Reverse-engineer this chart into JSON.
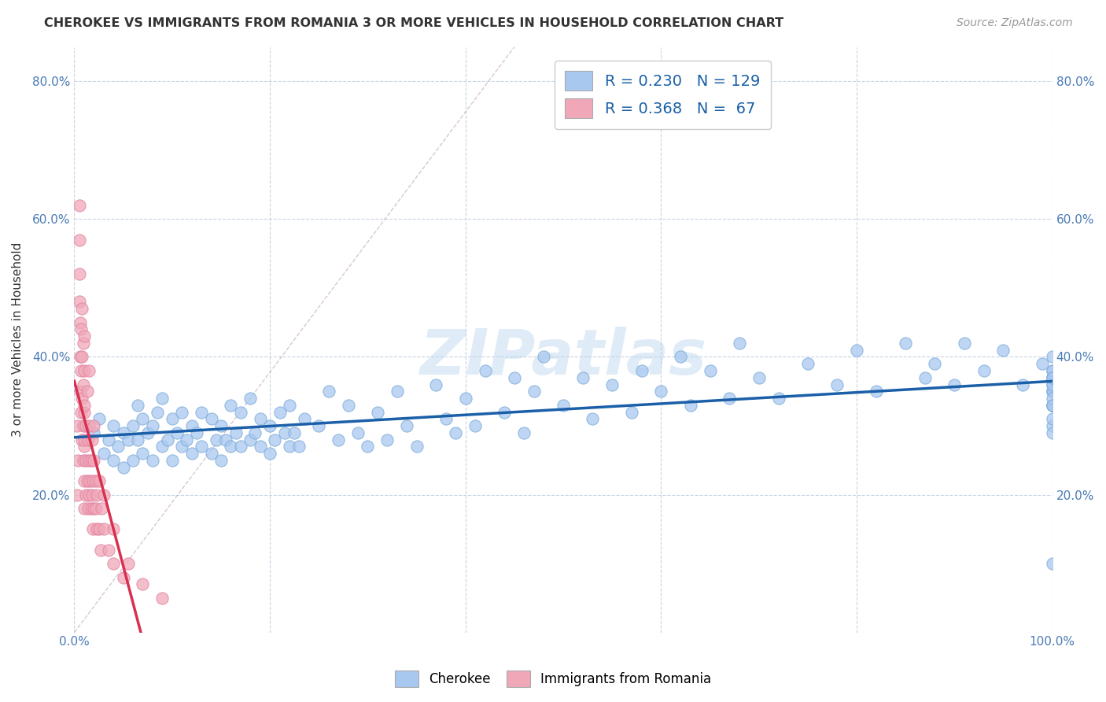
{
  "title": "CHEROKEE VS IMMIGRANTS FROM ROMANIA 3 OR MORE VEHICLES IN HOUSEHOLD CORRELATION CHART",
  "source": "Source: ZipAtlas.com",
  "ylabel": "3 or more Vehicles in Household",
  "xlim": [
    0,
    1.0
  ],
  "ylim": [
    0,
    0.85
  ],
  "xticks": [
    0,
    0.2,
    0.4,
    0.6,
    0.8,
    1.0
  ],
  "yticks": [
    0,
    0.2,
    0.4,
    0.6,
    0.8
  ],
  "xticklabels": [
    "0.0%",
    "",
    "",
    "",
    "",
    "100.0%"
  ],
  "yticklabels_left": [
    "",
    "20.0%",
    "40.0%",
    "60.0%",
    "80.0%"
  ],
  "yticklabels_right": [
    "",
    "20.0%",
    "40.0%",
    "60.0%",
    "80.0%"
  ],
  "cherokee_color": "#a8c8f0",
  "romania_color": "#f0a8b8",
  "cherokee_edge_color": "#7aaad8",
  "romania_edge_color": "#e080a0",
  "cherokee_line_color": "#1a5fa8",
  "romania_line_color": "#d83050",
  "diagonal_color": "#c8a8b0",
  "R_cherokee": 0.23,
  "N_cherokee": 129,
  "R_romania": 0.368,
  "N_romania": 67,
  "watermark": "ZIPatlas",
  "cherokee_x": [
    0.02,
    0.025,
    0.03,
    0.035,
    0.04,
    0.04,
    0.045,
    0.05,
    0.05,
    0.055,
    0.06,
    0.06,
    0.065,
    0.065,
    0.07,
    0.07,
    0.075,
    0.08,
    0.08,
    0.085,
    0.09,
    0.09,
    0.095,
    0.1,
    0.1,
    0.105,
    0.11,
    0.11,
    0.115,
    0.12,
    0.12,
    0.125,
    0.13,
    0.13,
    0.14,
    0.14,
    0.145,
    0.15,
    0.15,
    0.155,
    0.16,
    0.16,
    0.165,
    0.17,
    0.17,
    0.18,
    0.18,
    0.185,
    0.19,
    0.19,
    0.2,
    0.2,
    0.205,
    0.21,
    0.215,
    0.22,
    0.22,
    0.225,
    0.23,
    0.235,
    0.25,
    0.26,
    0.27,
    0.28,
    0.29,
    0.3,
    0.31,
    0.32,
    0.33,
    0.34,
    0.35,
    0.37,
    0.38,
    0.39,
    0.4,
    0.41,
    0.42,
    0.44,
    0.45,
    0.46,
    0.47,
    0.48,
    0.5,
    0.52,
    0.53,
    0.55,
    0.57,
    0.58,
    0.6,
    0.62,
    0.63,
    0.65,
    0.67,
    0.68,
    0.7,
    0.72,
    0.75,
    0.78,
    0.8,
    0.82,
    0.85,
    0.87,
    0.88,
    0.9,
    0.91,
    0.93,
    0.95,
    0.97,
    0.99,
    1.0,
    1.0,
    1.0,
    1.0,
    1.0,
    1.0,
    1.0,
    1.0,
    1.0,
    1.0,
    1.0,
    1.0,
    1.0,
    1.0,
    1.0,
    1.0,
    1.0,
    1.0,
    1.0,
    1.0
  ],
  "cherokee_y": [
    0.29,
    0.31,
    0.26,
    0.28,
    0.25,
    0.3,
    0.27,
    0.24,
    0.29,
    0.28,
    0.25,
    0.3,
    0.28,
    0.33,
    0.26,
    0.31,
    0.29,
    0.25,
    0.3,
    0.32,
    0.27,
    0.34,
    0.28,
    0.25,
    0.31,
    0.29,
    0.27,
    0.32,
    0.28,
    0.26,
    0.3,
    0.29,
    0.27,
    0.32,
    0.26,
    0.31,
    0.28,
    0.25,
    0.3,
    0.28,
    0.27,
    0.33,
    0.29,
    0.27,
    0.32,
    0.28,
    0.34,
    0.29,
    0.27,
    0.31,
    0.26,
    0.3,
    0.28,
    0.32,
    0.29,
    0.27,
    0.33,
    0.29,
    0.27,
    0.31,
    0.3,
    0.35,
    0.28,
    0.33,
    0.29,
    0.27,
    0.32,
    0.28,
    0.35,
    0.3,
    0.27,
    0.36,
    0.31,
    0.29,
    0.34,
    0.3,
    0.38,
    0.32,
    0.37,
    0.29,
    0.35,
    0.4,
    0.33,
    0.37,
    0.31,
    0.36,
    0.32,
    0.38,
    0.35,
    0.4,
    0.33,
    0.38,
    0.34,
    0.42,
    0.37,
    0.34,
    0.39,
    0.36,
    0.41,
    0.35,
    0.42,
    0.37,
    0.39,
    0.36,
    0.42,
    0.38,
    0.41,
    0.36,
    0.39,
    0.33,
    0.36,
    0.38,
    0.35,
    0.37,
    0.4,
    0.35,
    0.33,
    0.37,
    0.3,
    0.35,
    0.38,
    0.33,
    0.36,
    0.31,
    0.34,
    0.37,
    0.29,
    0.33,
    0.1
  ],
  "romania_x": [
    0.003,
    0.003,
    0.004,
    0.005,
    0.005,
    0.005,
    0.005,
    0.006,
    0.006,
    0.006,
    0.007,
    0.007,
    0.007,
    0.008,
    0.008,
    0.008,
    0.008,
    0.009,
    0.009,
    0.009,
    0.009,
    0.01,
    0.01,
    0.01,
    0.01,
    0.01,
    0.01,
    0.01,
    0.01,
    0.012,
    0.012,
    0.012,
    0.013,
    0.013,
    0.014,
    0.014,
    0.015,
    0.015,
    0.015,
    0.015,
    0.016,
    0.017,
    0.017,
    0.018,
    0.018,
    0.019,
    0.019,
    0.02,
    0.02,
    0.02,
    0.022,
    0.022,
    0.023,
    0.023,
    0.025,
    0.025,
    0.027,
    0.028,
    0.03,
    0.03,
    0.035,
    0.04,
    0.04,
    0.05,
    0.055,
    0.07,
    0.09
  ],
  "romania_y": [
    0.3,
    0.2,
    0.25,
    0.62,
    0.57,
    0.52,
    0.48,
    0.4,
    0.35,
    0.45,
    0.32,
    0.38,
    0.44,
    0.28,
    0.34,
    0.4,
    0.47,
    0.25,
    0.3,
    0.36,
    0.42,
    0.22,
    0.27,
    0.32,
    0.38,
    0.43,
    0.28,
    0.18,
    0.33,
    0.2,
    0.25,
    0.3,
    0.22,
    0.35,
    0.18,
    0.28,
    0.2,
    0.25,
    0.3,
    0.38,
    0.22,
    0.18,
    0.25,
    0.2,
    0.28,
    0.15,
    0.22,
    0.18,
    0.25,
    0.3,
    0.18,
    0.22,
    0.15,
    0.2,
    0.15,
    0.22,
    0.12,
    0.18,
    0.15,
    0.2,
    0.12,
    0.1,
    0.15,
    0.08,
    0.1,
    0.07,
    0.05
  ]
}
